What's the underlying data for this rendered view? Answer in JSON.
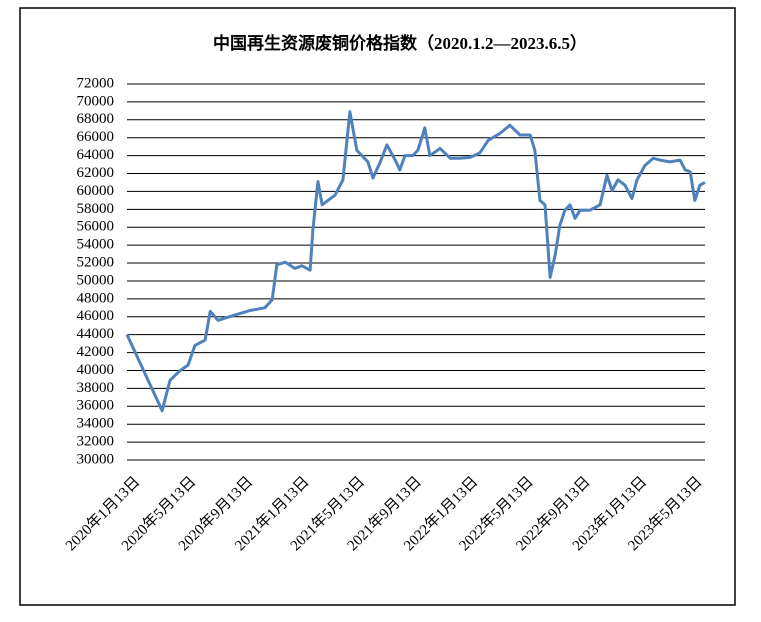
{
  "chart_data": {
    "type": "line",
    "title": "中国再生资源废铜价格指数（2020.1.2—2023.6.5）",
    "x": [
      "2020-01-02",
      "2020-03-18",
      "2020-04-04",
      "2020-04-26",
      "2020-05-13",
      "2020-05-28",
      "2020-06-19",
      "2020-06-30",
      "2020-07-17",
      "2020-08-23",
      "2020-09-24",
      "2020-10-26",
      "2020-11-11",
      "2020-11-21",
      "2020-12-09",
      "2020-12-30",
      "2021-01-14",
      "2021-02-01",
      "2021-02-07",
      "2021-02-18",
      "2021-02-27",
      "2021-03-27",
      "2021-04-13",
      "2021-04-28",
      "2021-05-13",
      "2021-05-24",
      "2021-06-06",
      "2021-06-17",
      "2021-07-02",
      "2021-07-17",
      "2021-08-04",
      "2021-08-14",
      "2021-08-25",
      "2021-09-11",
      "2021-09-22",
      "2021-10-07",
      "2021-10-18",
      "2021-11-09",
      "2021-12-01",
      "2021-12-22",
      "2022-01-13",
      "2022-02-03",
      "2022-02-21",
      "2022-03-19",
      "2022-04-09",
      "2022-05-01",
      "2022-05-23",
      "2022-06-02",
      "2022-06-13",
      "2022-06-24",
      "2022-07-05",
      "2022-07-16",
      "2022-07-26",
      "2022-08-06",
      "2022-08-17",
      "2022-08-28",
      "2022-09-08",
      "2022-09-29",
      "2022-10-21",
      "2022-11-05",
      "2022-11-16",
      "2022-11-29",
      "2022-12-14",
      "2022-12-29",
      "2023-01-09",
      "2023-01-26",
      "2023-02-13",
      "2023-02-28",
      "2023-03-21",
      "2023-04-12",
      "2023-04-23",
      "2023-05-04",
      "2023-05-14",
      "2023-05-25",
      "2023-06-05"
    ],
    "series": [
      {
        "color": "#4f81bd",
        "values": [
          44000,
          35500,
          38900,
          40000,
          40600,
          42800,
          43400,
          46600,
          45600,
          46200,
          46700,
          47000,
          47900,
          51800,
          52100,
          51400,
          51700,
          51200,
          55700,
          61100,
          58500,
          59600,
          61300,
          68900,
          64600,
          64000,
          63300,
          61500,
          63200,
          65200,
          63500,
          62400,
          64000,
          64000,
          64600,
          67100,
          64000,
          64800,
          63700,
          63700,
          63800,
          64300,
          65700,
          66500,
          67400,
          66300,
          66300,
          64600,
          59000,
          58500,
          50400,
          52900,
          56200,
          57900,
          58500,
          57000,
          57900,
          57900,
          58500,
          61800,
          60100,
          61300,
          60700,
          59200,
          61300,
          62900,
          63700,
          63500,
          63300,
          63500,
          62400,
          62200,
          59000,
          60700,
          61000
        ]
      }
    ],
    "xlim": [
      "2020-01-02",
      "2023-06-05"
    ],
    "xticks": [
      {
        "value": "2020-01-13",
        "label": "2020年1月13日"
      },
      {
        "value": "2020-05-13",
        "label": "2020年5月13日"
      },
      {
        "value": "2020-09-13",
        "label": "2020年9月13日"
      },
      {
        "value": "2021-01-13",
        "label": "2021年1月13日"
      },
      {
        "value": "2021-05-13",
        "label": "2021年5月13日"
      },
      {
        "value": "2021-09-13",
        "label": "2021年9月13日"
      },
      {
        "value": "2022-01-13",
        "label": "2022年1月13日"
      },
      {
        "value": "2022-05-13",
        "label": "2022年5月13日"
      },
      {
        "value": "2022-09-13",
        "label": "2022年9月13日"
      },
      {
        "value": "2023-01-13",
        "label": "2023年1月13日"
      },
      {
        "value": "2023-05-13",
        "label": "2023年5月13日"
      }
    ],
    "ylim": [
      30000,
      72000
    ],
    "yticks": [
      30000,
      32000,
      34000,
      36000,
      38000,
      40000,
      42000,
      44000,
      46000,
      48000,
      50000,
      52000,
      54000,
      56000,
      58000,
      60000,
      62000,
      64000,
      66000,
      68000,
      70000,
      72000
    ],
    "grid": true
  }
}
